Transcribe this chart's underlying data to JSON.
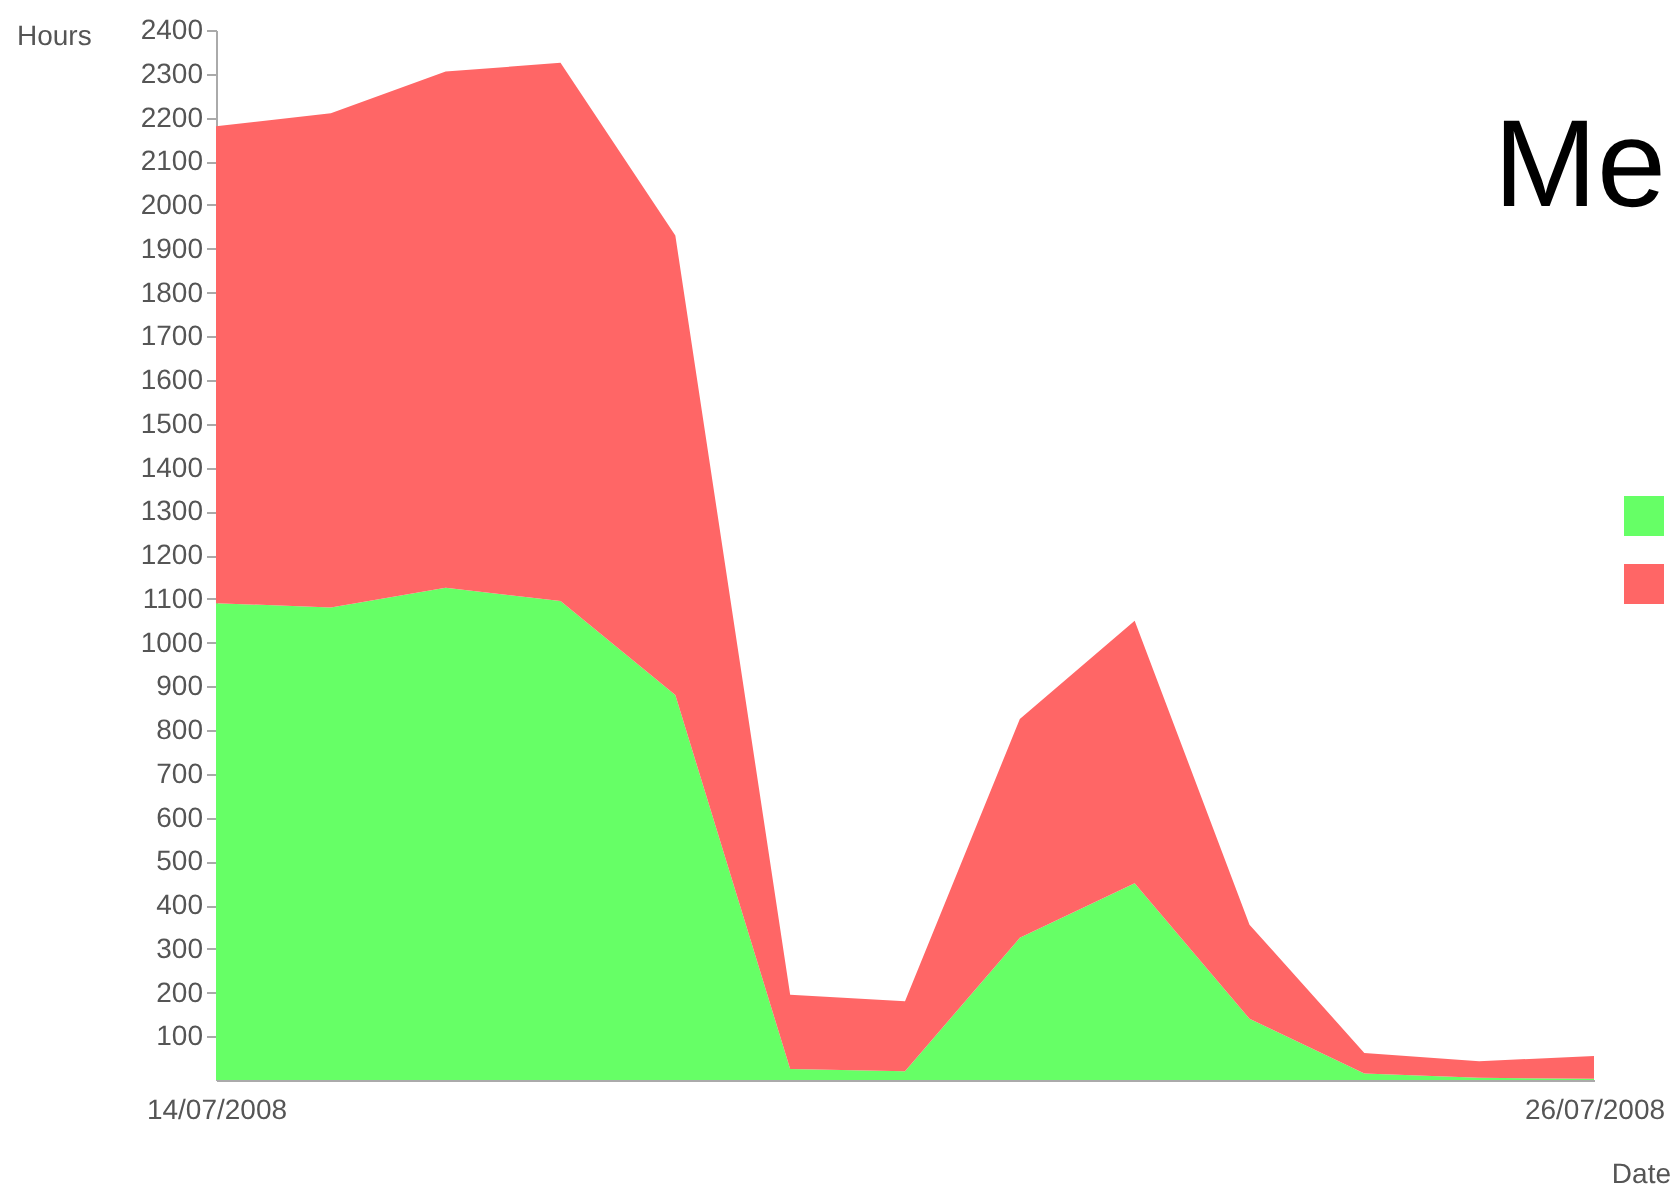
{
  "chart_data": {
    "type": "area",
    "title": "Me",
    "xlabel": "Date",
    "ylabel": "Hours",
    "stacked": true,
    "x": [
      "2008-07-14",
      "2008-07-15",
      "2008-07-16",
      "2008-07-17",
      "2008-07-18",
      "2008-07-19",
      "2008-07-20",
      "2008-07-21",
      "2008-07-22",
      "2008-07-23",
      "2008-07-24",
      "2008-07-25",
      "2008-07-26"
    ],
    "xlim": [
      "2008-07-14",
      "2008-07-26"
    ],
    "xticks": [
      {
        "value": "2008-07-14",
        "label": "14/07/2008"
      },
      {
        "value": "2008-07-26",
        "label": "26/07/2008"
      }
    ],
    "ylim": [
      0,
      2400
    ],
    "yticks": [
      100,
      200,
      300,
      400,
      500,
      600,
      700,
      800,
      900,
      1000,
      1100,
      1200,
      1300,
      1400,
      1500,
      1600,
      1700,
      1800,
      1900,
      2000,
      2100,
      2200,
      2300,
      2400
    ],
    "series": [
      {
        "color": "#66ff66",
        "values": [
          1090,
          1080,
          1125,
          1095,
          880,
          25,
          20,
          325,
          450,
          140,
          15,
          5,
          3
        ]
      },
      {
        "color": "#ff6666",
        "values": [
          1090,
          1130,
          1180,
          1230,
          1050,
          170,
          160,
          500,
          600,
          215,
          47,
          38,
          52
        ]
      }
    ]
  }
}
